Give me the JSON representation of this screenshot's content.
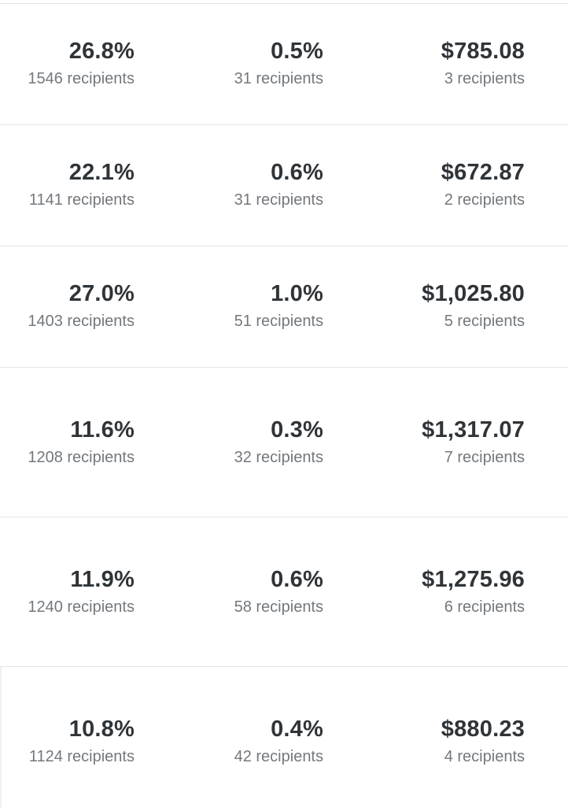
{
  "rows": [
    {
      "open_rate": "26.8%",
      "open_recipients": "1546 recipients",
      "click_rate": "0.5%",
      "click_recipients": "31 recipients",
      "revenue": "$785.08",
      "revenue_recipients": "3 recipients"
    },
    {
      "open_rate": "22.1%",
      "open_recipients": "1141 recipients",
      "click_rate": "0.6%",
      "click_recipients": "31 recipients",
      "revenue": "$672.87",
      "revenue_recipients": "2 recipients"
    },
    {
      "open_rate": "27.0%",
      "open_recipients": "1403 recipients",
      "click_rate": "1.0%",
      "click_recipients": "51 recipients",
      "revenue": "$1,025.80",
      "revenue_recipients": "5 recipients"
    },
    {
      "open_rate": "11.6%",
      "open_recipients": "1208 recipients",
      "click_rate": "0.3%",
      "click_recipients": "32 recipients",
      "revenue": "$1,317.07",
      "revenue_recipients": "7 recipients"
    },
    {
      "open_rate": "11.9%",
      "open_recipients": "1240 recipients",
      "click_rate": "0.6%",
      "click_recipients": "58 recipients",
      "revenue": "$1,275.96",
      "revenue_recipients": "6 recipients"
    },
    {
      "open_rate": "10.8%",
      "open_recipients": "1124 recipients",
      "click_rate": "0.4%",
      "click_recipients": "42 recipients",
      "revenue": "$880.23",
      "revenue_recipients": "4 recipients"
    }
  ]
}
